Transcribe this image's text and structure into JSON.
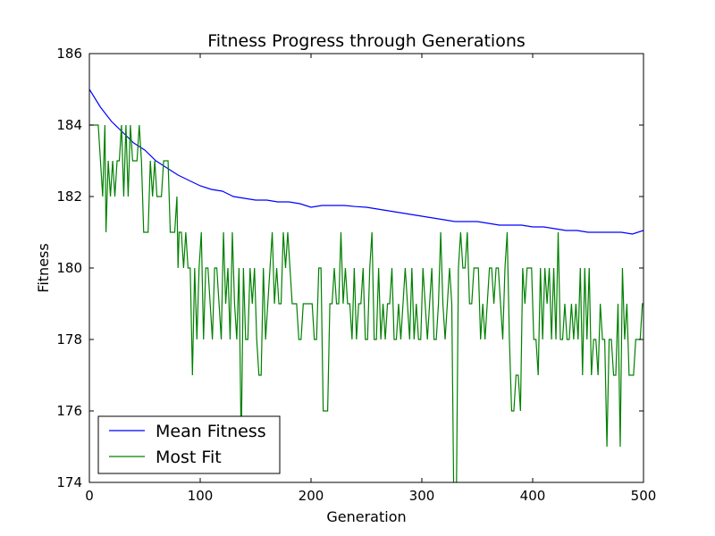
{
  "chart_data": {
    "type": "line",
    "title": "Fitness Progress through Generations",
    "xlabel": "Generation",
    "ylabel": "Fitness",
    "xlim": [
      0,
      500
    ],
    "ylim": [
      174,
      186
    ],
    "xticks": [
      0,
      100,
      200,
      300,
      400,
      500
    ],
    "yticks": [
      174,
      176,
      178,
      180,
      182,
      184,
      186
    ],
    "grid": false,
    "legend_position": "lower-left",
    "series": [
      {
        "name": "Mean Fitness",
        "color": "#0000ff",
        "points": [
          [
            0,
            185.0
          ],
          [
            10,
            184.5
          ],
          [
            20,
            184.1
          ],
          [
            30,
            183.8
          ],
          [
            40,
            183.5
          ],
          [
            50,
            183.3
          ],
          [
            60,
            183.0
          ],
          [
            70,
            182.8
          ],
          [
            80,
            182.6
          ],
          [
            90,
            182.45
          ],
          [
            100,
            182.3
          ],
          [
            110,
            182.2
          ],
          [
            120,
            182.15
          ],
          [
            130,
            182.0
          ],
          [
            140,
            181.95
          ],
          [
            150,
            181.9
          ],
          [
            160,
            181.9
          ],
          [
            170,
            181.85
          ],
          [
            180,
            181.85
          ],
          [
            190,
            181.8
          ],
          [
            200,
            181.7
          ],
          [
            210,
            181.75
          ],
          [
            220,
            181.75
          ],
          [
            230,
            181.75
          ],
          [
            240,
            181.72
          ],
          [
            250,
            181.7
          ],
          [
            260,
            181.65
          ],
          [
            270,
            181.6
          ],
          [
            280,
            181.55
          ],
          [
            290,
            181.5
          ],
          [
            300,
            181.45
          ],
          [
            310,
            181.4
          ],
          [
            320,
            181.35
          ],
          [
            330,
            181.3
          ],
          [
            340,
            181.3
          ],
          [
            350,
            181.3
          ],
          [
            360,
            181.25
          ],
          [
            370,
            181.2
          ],
          [
            380,
            181.2
          ],
          [
            390,
            181.2
          ],
          [
            400,
            181.15
          ],
          [
            410,
            181.15
          ],
          [
            420,
            181.1
          ],
          [
            430,
            181.05
          ],
          [
            440,
            181.05
          ],
          [
            450,
            181.0
          ],
          [
            460,
            181.0
          ],
          [
            470,
            181.0
          ],
          [
            480,
            181.0
          ],
          [
            490,
            180.95
          ],
          [
            500,
            181.05
          ]
        ]
      },
      {
        "name": "Most Fit",
        "color": "#008000",
        "points": [
          [
            0,
            184
          ],
          [
            5,
            184
          ],
          [
            8,
            184
          ],
          [
            10,
            183
          ],
          [
            12,
            182
          ],
          [
            14,
            184
          ],
          [
            15,
            181
          ],
          [
            17,
            183
          ],
          [
            19,
            182
          ],
          [
            21,
            183
          ],
          [
            23,
            182
          ],
          [
            25,
            183
          ],
          [
            27,
            183
          ],
          [
            29,
            184
          ],
          [
            31,
            182
          ],
          [
            33,
            184
          ],
          [
            35,
            182
          ],
          [
            37,
            184
          ],
          [
            39,
            183
          ],
          [
            41,
            183
          ],
          [
            43,
            183
          ],
          [
            45,
            184
          ],
          [
            47,
            183
          ],
          [
            49,
            181
          ],
          [
            51,
            181
          ],
          [
            53,
            181
          ],
          [
            55,
            183
          ],
          [
            57,
            182
          ],
          [
            59,
            183
          ],
          [
            61,
            182
          ],
          [
            63,
            182
          ],
          [
            65,
            182
          ],
          [
            67,
            183
          ],
          [
            69,
            183
          ],
          [
            71,
            183
          ],
          [
            73,
            181
          ],
          [
            75,
            181
          ],
          [
            77,
            181
          ],
          [
            79,
            182
          ],
          [
            80,
            180
          ],
          [
            81,
            181
          ],
          [
            83,
            181
          ],
          [
            85,
            180
          ],
          [
            87,
            181
          ],
          [
            89,
            180
          ],
          [
            91,
            180
          ],
          [
            93,
            177
          ],
          [
            95,
            180
          ],
          [
            97,
            178
          ],
          [
            99,
            180
          ],
          [
            101,
            181
          ],
          [
            103,
            178
          ],
          [
            105,
            180
          ],
          [
            107,
            180
          ],
          [
            109,
            179
          ],
          [
            111,
            178
          ],
          [
            113,
            180
          ],
          [
            115,
            180
          ],
          [
            117,
            179
          ],
          [
            119,
            178
          ],
          [
            121,
            181
          ],
          [
            123,
            179
          ],
          [
            125,
            180
          ],
          [
            127,
            178
          ],
          [
            129,
            181
          ],
          [
            131,
            179
          ],
          [
            133,
            178
          ],
          [
            135,
            180
          ],
          [
            137,
            175
          ],
          [
            139,
            180
          ],
          [
            141,
            178
          ],
          [
            143,
            178
          ],
          [
            145,
            180
          ],
          [
            147,
            179
          ],
          [
            149,
            180
          ],
          [
            151,
            178
          ],
          [
            153,
            177
          ],
          [
            155,
            177
          ],
          [
            157,
            180
          ],
          [
            159,
            178
          ],
          [
            161,
            179
          ],
          [
            163,
            180
          ],
          [
            165,
            181
          ],
          [
            167,
            179
          ],
          [
            169,
            180
          ],
          [
            171,
            179
          ],
          [
            173,
            179
          ],
          [
            175,
            181
          ],
          [
            177,
            180
          ],
          [
            179,
            181
          ],
          [
            181,
            180
          ],
          [
            183,
            179
          ],
          [
            185,
            179
          ],
          [
            187,
            179
          ],
          [
            189,
            178
          ],
          [
            191,
            178
          ],
          [
            193,
            179
          ],
          [
            195,
            179
          ],
          [
            197,
            179
          ],
          [
            199,
            179
          ],
          [
            201,
            179
          ],
          [
            203,
            178
          ],
          [
            205,
            178
          ],
          [
            207,
            180
          ],
          [
            209,
            180
          ],
          [
            211,
            176
          ],
          [
            213,
            176
          ],
          [
            215,
            176
          ],
          [
            217,
            179
          ],
          [
            219,
            179
          ],
          [
            221,
            180
          ],
          [
            223,
            179
          ],
          [
            225,
            179
          ],
          [
            227,
            181
          ],
          [
            229,
            179
          ],
          [
            231,
            180
          ],
          [
            233,
            179
          ],
          [
            235,
            179
          ],
          [
            237,
            178
          ],
          [
            239,
            180
          ],
          [
            241,
            178
          ],
          [
            243,
            179
          ],
          [
            245,
            179
          ],
          [
            247,
            180
          ],
          [
            249,
            178
          ],
          [
            251,
            178
          ],
          [
            253,
            180
          ],
          [
            255,
            181
          ],
          [
            257,
            178
          ],
          [
            259,
            178
          ],
          [
            261,
            180
          ],
          [
            263,
            178
          ],
          [
            265,
            179
          ],
          [
            267,
            178
          ],
          [
            269,
            179
          ],
          [
            271,
            179
          ],
          [
            273,
            180
          ],
          [
            275,
            178
          ],
          [
            277,
            178
          ],
          [
            279,
            179
          ],
          [
            281,
            178
          ],
          [
            283,
            179
          ],
          [
            285,
            180
          ],
          [
            287,
            179
          ],
          [
            289,
            178
          ],
          [
            291,
            180
          ],
          [
            293,
            178
          ],
          [
            295,
            179
          ],
          [
            297,
            178
          ],
          [
            299,
            178
          ],
          [
            301,
            180
          ],
          [
            303,
            179
          ],
          [
            305,
            178
          ],
          [
            307,
            179
          ],
          [
            309,
            180
          ],
          [
            311,
            178
          ],
          [
            313,
            178
          ],
          [
            315,
            179
          ],
          [
            317,
            181
          ],
          [
            319,
            179
          ],
          [
            321,
            178
          ],
          [
            323,
            179
          ],
          [
            325,
            180
          ],
          [
            327,
            179
          ],
          [
            329,
            173
          ],
          [
            331,
            173
          ],
          [
            333,
            180
          ],
          [
            335,
            181
          ],
          [
            337,
            180
          ],
          [
            339,
            180
          ],
          [
            341,
            181
          ],
          [
            343,
            179
          ],
          [
            345,
            179
          ],
          [
            347,
            180
          ],
          [
            349,
            180
          ],
          [
            351,
            180
          ],
          [
            353,
            178
          ],
          [
            355,
            179
          ],
          [
            357,
            178
          ],
          [
            359,
            179
          ],
          [
            361,
            180
          ],
          [
            363,
            180
          ],
          [
            365,
            179
          ],
          [
            367,
            180
          ],
          [
            369,
            180
          ],
          [
            371,
            179
          ],
          [
            373,
            178
          ],
          [
            375,
            180
          ],
          [
            377,
            181
          ],
          [
            379,
            178
          ],
          [
            381,
            176
          ],
          [
            383,
            176
          ],
          [
            385,
            177
          ],
          [
            387,
            177
          ],
          [
            389,
            176
          ],
          [
            391,
            180
          ],
          [
            393,
            179
          ],
          [
            395,
            180
          ],
          [
            397,
            180
          ],
          [
            399,
            180
          ],
          [
            401,
            178
          ],
          [
            403,
            178
          ],
          [
            405,
            177
          ],
          [
            407,
            180
          ],
          [
            409,
            178
          ],
          [
            411,
            180
          ],
          [
            413,
            179
          ],
          [
            415,
            180
          ],
          [
            417,
            178
          ],
          [
            419,
            180
          ],
          [
            421,
            178
          ],
          [
            423,
            181
          ],
          [
            425,
            178
          ],
          [
            427,
            178
          ],
          [
            429,
            179
          ],
          [
            431,
            178
          ],
          [
            433,
            178
          ],
          [
            435,
            179
          ],
          [
            437,
            178
          ],
          [
            439,
            179
          ],
          [
            441,
            178
          ],
          [
            443,
            180
          ],
          [
            445,
            177
          ],
          [
            447,
            180
          ],
          [
            449,
            178
          ],
          [
            451,
            180
          ],
          [
            453,
            177
          ],
          [
            455,
            178
          ],
          [
            457,
            178
          ],
          [
            459,
            177
          ],
          [
            461,
            179
          ],
          [
            463,
            178
          ],
          [
            465,
            178
          ],
          [
            467,
            175
          ],
          [
            469,
            178
          ],
          [
            471,
            178
          ],
          [
            473,
            177
          ],
          [
            475,
            177
          ],
          [
            477,
            179
          ],
          [
            479,
            175
          ],
          [
            481,
            180
          ],
          [
            483,
            178
          ],
          [
            485,
            179
          ],
          [
            487,
            177
          ],
          [
            489,
            177
          ],
          [
            491,
            177
          ],
          [
            493,
            178
          ],
          [
            495,
            178
          ],
          [
            497,
            178
          ],
          [
            499,
            179
          ],
          [
            500,
            179
          ]
        ]
      }
    ]
  }
}
